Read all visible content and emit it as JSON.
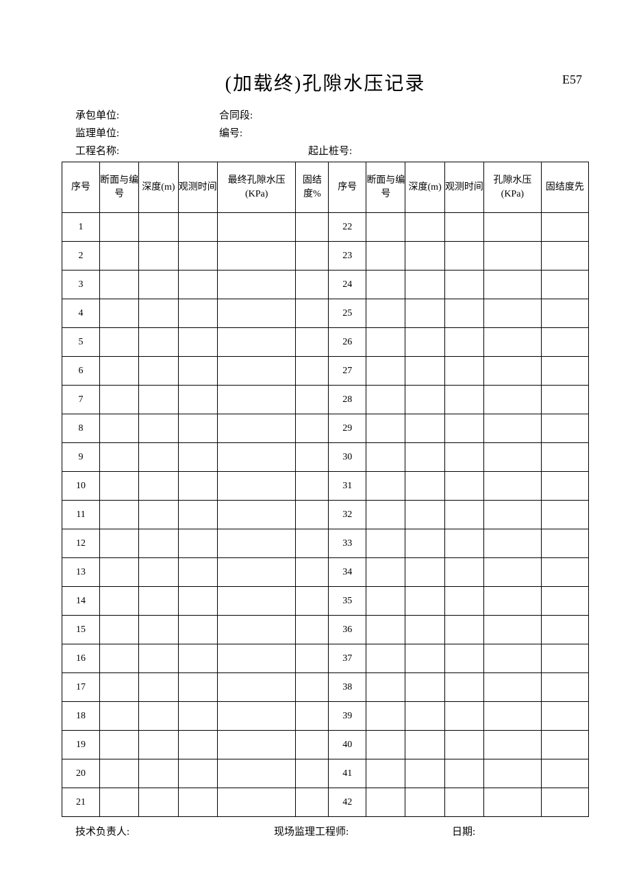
{
  "header": {
    "title": "(加载终)孔隙水压记录",
    "code": "E57"
  },
  "info": {
    "contractor_label": "承包单位:",
    "contract_section_label": "合同段:",
    "supervisor_label": "监理单位:",
    "number_label": "编号:",
    "project_label": "工程名称:",
    "station_label": "起止桩号:"
  },
  "table": {
    "headers_left": {
      "idx": "序号",
      "section": "断面与编号",
      "depth": "深度(m)",
      "time": "观测时间",
      "pressure": "最终孔隙水压(KPa)",
      "consol": "固结度%"
    },
    "headers_right": {
      "idx": "序号",
      "section": "断面与编号",
      "depth": "深度(m)",
      "time": "观测时间",
      "pressure": "孔隙水压(KPa)",
      "consol": "固结度先"
    },
    "left_start": 1,
    "right_start": 22,
    "row_count": 21
  },
  "footer": {
    "tech_label": "技术负责人:",
    "engineer_label": "现场监理工程师:",
    "date_label": "日期:"
  },
  "style": {
    "background_color": "#ffffff",
    "text_color": "#000000",
    "border_color": "#000000",
    "title_fontsize": 28,
    "info_fontsize": 15,
    "table_fontsize": 14,
    "header_row_height": 74,
    "body_row_height": 42
  }
}
